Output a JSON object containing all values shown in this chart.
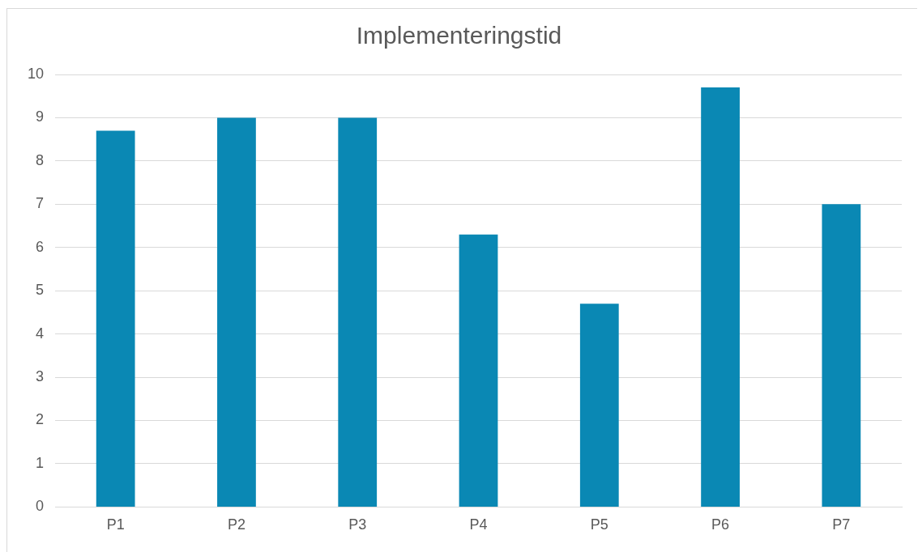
{
  "chart_data": {
    "type": "bar",
    "title": "Implementeringstid",
    "categories": [
      "P1",
      "P2",
      "P3",
      "P4",
      "P5",
      "P6",
      "P7"
    ],
    "values": [
      8.7,
      9,
      9,
      6.3,
      4.7,
      9.7,
      7
    ],
    "color": "#0a88b4",
    "ylim": [
      0,
      10
    ],
    "yticks": [
      0,
      1,
      2,
      3,
      4,
      5,
      6,
      7,
      8,
      9,
      10
    ],
    "grid": "y",
    "legend": false
  }
}
